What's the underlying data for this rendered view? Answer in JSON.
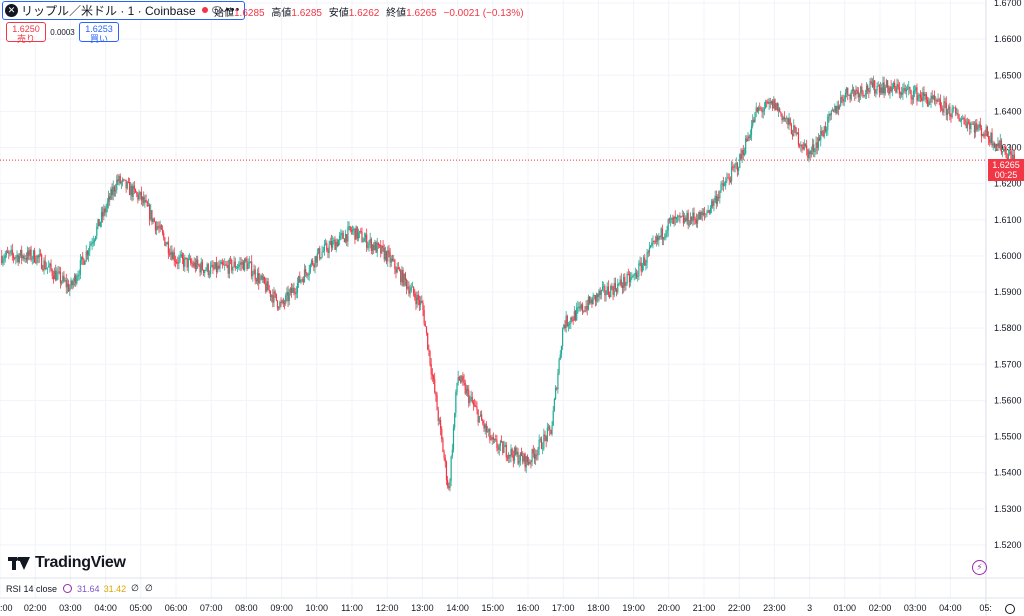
{
  "header": {
    "symbol_title": "リップル／米ドル · 1 · Coinbase",
    "more": "•••",
    "ohlc": [
      {
        "label": "始値",
        "value": "1.6285"
      },
      {
        "label": "高値",
        "value": "1.6285"
      },
      {
        "label": "安値",
        "value": "1.6262"
      },
      {
        "label": "終値",
        "value": "1.6265"
      },
      {
        "label": "",
        "value": "−0.0021 (−0.13%)"
      }
    ]
  },
  "trade": {
    "sell_price": "1.6250",
    "sell_label": "売り",
    "spread": "0.0003",
    "buy_price": "1.6253",
    "buy_label": "買い"
  },
  "branding": {
    "logo_text": "TradingView"
  },
  "rsi": {
    "title": "RSI 14 close",
    "value1": "31.64",
    "value2": "31.42",
    "null1": "∅",
    "null2": "∅"
  },
  "price_label": {
    "price": "1.6265",
    "countdown": "00:25"
  },
  "colors": {
    "up": "#22ab94",
    "down": "#f23645",
    "text": "#131722",
    "grid": "#f0f3fa",
    "axis_text": "#131722"
  },
  "chart_data": {
    "type": "candlestick",
    "title": "",
    "ylim": [
      1.515,
      1.67
    ],
    "y_ticks": [
      "1.6700",
      "1.6600",
      "1.6500",
      "1.6400",
      "1.6300",
      "1.6200",
      "1.6100",
      "1.6000",
      "1.5900",
      "1.5800",
      "1.5700",
      "1.5600",
      "1.5500",
      "1.5400",
      "1.5300",
      "1.5200"
    ],
    "x_ticks": [
      ":00",
      "02:00",
      "03:00",
      "04:00",
      "05:00",
      "06:00",
      "07:00",
      "08:00",
      "09:00",
      "10:00",
      "11:00",
      "12:00",
      "13:00",
      "14:00",
      "15:00",
      "16:00",
      "17:00",
      "18:00",
      "19:00",
      "20:00",
      "21:00",
      "22:00",
      "23:00",
      "3",
      "01:00",
      "02:00",
      "03:00",
      "04:00",
      "05:"
    ],
    "grid": true,
    "last_price": 1.6265,
    "trend_hourly": [
      {
        "time": "01:00",
        "price": 1.6
      },
      {
        "time": "02:00",
        "price": 1.591
      },
      {
        "time": "03:00",
        "price": 1.613
      },
      {
        "time": "03:20",
        "price": 1.621
      },
      {
        "time": "04:00",
        "price": 1.616
      },
      {
        "time": "05:00",
        "price": 1.599
      },
      {
        "time": "06:00",
        "price": 1.596
      },
      {
        "time": "07:00",
        "price": 1.598
      },
      {
        "time": "08:00",
        "price": 1.586
      },
      {
        "time": "09:00",
        "price": 1.6
      },
      {
        "time": "10:00",
        "price": 1.607
      },
      {
        "time": "11:00",
        "price": 1.6
      },
      {
        "time": "12:00",
        "price": 1.586
      },
      {
        "time": "12:45",
        "price": 1.535
      },
      {
        "time": "13:00",
        "price": 1.567
      },
      {
        "time": "14:00",
        "price": 1.548
      },
      {
        "time": "15:00",
        "price": 1.543
      },
      {
        "time": "15:40",
        "price": 1.552
      },
      {
        "time": "16:00",
        "price": 1.581
      },
      {
        "time": "17:00",
        "price": 1.589
      },
      {
        "time": "18:00",
        "price": 1.594
      },
      {
        "time": "19:00",
        "price": 1.609
      },
      {
        "time": "20:00",
        "price": 1.611
      },
      {
        "time": "21:00",
        "price": 1.626
      },
      {
        "time": "21:30",
        "price": 1.64
      },
      {
        "time": "22:00",
        "price": 1.642
      },
      {
        "time": "23:00",
        "price": 1.628
      },
      {
        "time": "00:00",
        "price": 1.645
      },
      {
        "time": "01:00",
        "price": 1.647
      },
      {
        "time": "02:00",
        "price": 1.645
      },
      {
        "time": "03:00",
        "price": 1.64
      },
      {
        "time": "04:00",
        "price": 1.634
      },
      {
        "time": "04:50",
        "price": 1.6265
      }
    ]
  }
}
